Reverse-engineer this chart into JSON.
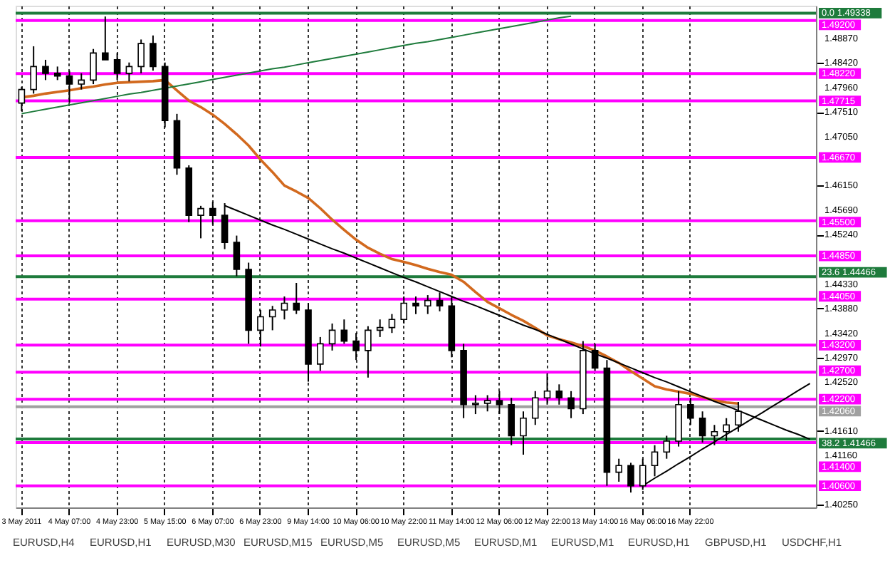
{
  "chart_data": {
    "type": "candlestick",
    "categories": [
      "3 May 2011",
      null,
      null,
      null,
      "4 May 07:00",
      null,
      null,
      null,
      "4 May 23:00",
      null,
      null,
      null,
      "5 May 15:00",
      null,
      null,
      null,
      "6 May 07:00",
      null,
      null,
      null,
      "6 May 23:00",
      null,
      null,
      null,
      "9 May 14:00",
      null,
      null,
      null,
      "10 May 06:00",
      null,
      null,
      null,
      "10 May 22:00",
      null,
      null,
      null,
      "11 May 14:00",
      null,
      null,
      null,
      "12 May 06:00",
      null,
      null,
      null,
      "12 May 22:00",
      null,
      null,
      null,
      "13 May 14:00",
      null,
      null,
      null,
      "16 May 06:00",
      null,
      null,
      null,
      "16 May 22:00",
      null,
      null,
      null,
      null,
      null,
      null,
      null,
      null,
      null,
      null
    ],
    "ohlc": [
      [
        1.47675,
        1.47975,
        1.47525,
        1.47925
      ],
      [
        1.47925,
        1.48725,
        1.4785,
        1.4835
      ],
      [
        1.4835,
        1.48475,
        1.481,
        1.48225
      ],
      [
        1.48225,
        1.4835,
        1.481,
        1.48175
      ],
      [
        1.48175,
        1.48275,
        1.47675,
        1.48025
      ],
      [
        1.48025,
        1.48225,
        1.47925,
        1.481
      ],
      [
        1.481,
        1.48675,
        1.48025,
        1.486
      ],
      [
        1.486,
        1.49275,
        1.48475,
        1.48475
      ],
      [
        1.48475,
        1.486,
        1.481,
        1.48225
      ],
      [
        1.48225,
        1.48425,
        1.48075,
        1.4835
      ],
      [
        1.4835,
        1.4885,
        1.48225,
        1.48775
      ],
      [
        1.48775,
        1.48925,
        1.48275,
        1.4835
      ],
      [
        1.4835,
        1.48425,
        1.47225,
        1.4735
      ],
      [
        1.4735,
        1.47475,
        1.4635,
        1.46475
      ],
      [
        1.46475,
        1.46525,
        1.45475,
        1.456
      ],
      [
        1.456,
        1.45775,
        1.45175,
        1.45725
      ],
      [
        1.45725,
        1.4585,
        1.45425,
        1.456
      ],
      [
        1.456,
        1.45825,
        1.44975,
        1.451
      ],
      [
        1.451,
        1.45225,
        1.44475,
        1.446
      ],
      [
        1.446,
        1.44725,
        1.43225,
        1.43475
      ],
      [
        1.43475,
        1.4385,
        1.43175,
        1.43725
      ],
      [
        1.43725,
        1.43925,
        1.43475,
        1.4385
      ],
      [
        1.4385,
        1.441,
        1.43675,
        1.43975
      ],
      [
        1.43975,
        1.4435,
        1.43775,
        1.4385
      ],
      [
        1.4385,
        1.43975,
        1.42525,
        1.4285
      ],
      [
        1.4285,
        1.4335,
        1.42725,
        1.43225
      ],
      [
        1.43225,
        1.436,
        1.431,
        1.43475
      ],
      [
        1.43475,
        1.43675,
        1.43225,
        1.43275
      ],
      [
        1.43275,
        1.43425,
        1.42925,
        1.431
      ],
      [
        1.431,
        1.4355,
        1.426,
        1.43475
      ],
      [
        1.43475,
        1.43675,
        1.4335,
        1.43525
      ],
      [
        1.43525,
        1.43775,
        1.43425,
        1.43675
      ],
      [
        1.43675,
        1.441,
        1.436,
        1.43975
      ],
      [
        1.43975,
        1.441,
        1.43775,
        1.43925
      ],
      [
        1.43925,
        1.44125,
        1.43775,
        1.44025
      ],
      [
        1.44025,
        1.44175,
        1.43825,
        1.43925
      ],
      [
        1.43925,
        1.441,
        1.42975,
        1.431
      ],
      [
        1.431,
        1.43225,
        1.4185,
        1.421
      ],
      [
        1.421,
        1.42275,
        1.41925,
        1.42125
      ],
      [
        1.42125,
        1.42275,
        1.41975,
        1.42175
      ],
      [
        1.42175,
        1.4235,
        1.41925,
        1.421
      ],
      [
        1.421,
        1.42225,
        1.4135,
        1.41525
      ],
      [
        1.41525,
        1.41975,
        1.41175,
        1.4185
      ],
      [
        1.4185,
        1.4235,
        1.41725,
        1.42225
      ],
      [
        1.42225,
        1.42675,
        1.421,
        1.4235
      ],
      [
        1.4235,
        1.42475,
        1.421,
        1.42225
      ],
      [
        1.42225,
        1.4235,
        1.4185,
        1.42025
      ],
      [
        1.42025,
        1.43275,
        1.41925,
        1.431
      ],
      [
        1.431,
        1.43225,
        1.42725,
        1.42775
      ],
      [
        1.42775,
        1.42925,
        1.406,
        1.4085
      ],
      [
        1.4085,
        1.411,
        1.40675,
        1.40975
      ],
      [
        1.40975,
        1.41025,
        1.40475,
        1.406
      ],
      [
        1.406,
        1.411,
        1.40525,
        1.40975
      ],
      [
        1.40975,
        1.4135,
        1.40775,
        1.41225
      ],
      [
        1.41225,
        1.41525,
        1.411,
        1.41425
      ],
      [
        1.41425,
        1.4235,
        1.41325,
        1.421
      ],
      [
        1.421,
        1.42225,
        1.41725,
        1.4185
      ],
      [
        1.4185,
        1.41975,
        1.414,
        1.41525
      ],
      [
        1.41525,
        1.41725,
        1.4135,
        1.416
      ],
      [
        1.416,
        1.4185,
        1.41425,
        1.41725
      ],
      [
        1.41725,
        1.4215,
        1.416,
        1.41975
      ],
      null,
      null,
      null,
      null,
      null,
      null
    ],
    "ylim": [
      1.402,
      1.49475
    ],
    "yticks": [
      {
        "value": 1.4025,
        "label": "1.40250"
      },
      {
        "value": 1.4116,
        "label": "1.41160"
      },
      {
        "value": 1.4161,
        "label": "1.41610"
      },
      {
        "value": 1.4252,
        "label": "1.42520"
      },
      {
        "value": 1.4297,
        "label": "1.42970"
      },
      {
        "value": 1.4342,
        "label": "1.43420"
      },
      {
        "value": 1.4388,
        "label": "1.43880"
      },
      {
        "value": 1.4433,
        "label": "1.44330"
      },
      {
        "value": 1.4524,
        "label": "1.45240"
      },
      {
        "value": 1.4569,
        "label": "1.45690"
      },
      {
        "value": 1.4615,
        "label": "1.46150"
      },
      {
        "value": 1.4705,
        "label": "1.47050"
      },
      {
        "value": 1.4751,
        "label": "1.47510"
      },
      {
        "value": 1.4796,
        "label": "1.47960"
      },
      {
        "value": 1.4842,
        "label": "1.48420"
      },
      {
        "value": 1.4887,
        "label": "1.48870"
      }
    ],
    "grid": "x",
    "line_style": "solid",
    "series": [
      {
        "type": "line",
        "color": "#d2691e",
        "values": [
          1.4778,
          1.4781,
          1.4785,
          1.4788,
          1.4791,
          1.4795,
          1.4798,
          1.4802,
          1.4805,
          1.4806,
          1.4807,
          1.4808,
          1.481,
          1.4791,
          1.4772,
          1.476,
          1.4746,
          1.4729,
          1.471,
          1.4689,
          1.4663,
          1.464,
          1.4615,
          1.4604,
          1.4592,
          1.4573,
          1.4552,
          1.4533,
          1.4515,
          1.45,
          1.4489,
          1.4479,
          1.4474,
          1.4468,
          1.4461,
          1.4455,
          1.445,
          1.4437,
          1.4418,
          1.44,
          1.4388,
          1.4376,
          1.4365,
          1.4352,
          1.4338,
          1.4331,
          1.4325,
          1.4318,
          1.431,
          1.4299,
          1.4287,
          1.4272,
          1.4258,
          1.4244,
          1.4238,
          1.4234,
          1.423,
          1.4224,
          1.4218,
          1.4214,
          1.4212,
          null,
          null,
          null,
          null,
          null,
          null
        ]
      },
      {
        "type": "line",
        "color": "#1e7b3c",
        "values": [
          1.4748,
          1.4752,
          1.4756,
          1.476,
          1.4764,
          1.4768,
          1.4772,
          1.4776,
          1.478,
          1.4784,
          1.4787,
          1.4791,
          1.4795,
          1.4799,
          1.4803,
          1.4807,
          1.4811,
          1.4815,
          1.4819,
          1.4823,
          1.4827,
          1.4831,
          1.4834,
          1.4838,
          1.4842,
          1.4846,
          1.485,
          1.4854,
          1.4858,
          1.4862,
          1.4866,
          1.487,
          1.4874,
          1.4878,
          1.4881,
          1.4885,
          1.4889,
          1.4893,
          1.4897,
          1.4901,
          1.4905,
          1.4909,
          1.4913,
          1.4917,
          1.4921,
          1.4925,
          1.4928,
          null,
          null,
          null,
          null,
          null,
          null,
          null,
          null,
          null,
          null,
          null,
          null,
          null,
          null,
          null,
          null,
          null,
          null,
          null,
          null
        ]
      },
      {
        "type": "line",
        "color": "#000000",
        "values": [
          null,
          null,
          null,
          null,
          null,
          null,
          null,
          null,
          null,
          null,
          null,
          null,
          null,
          null,
          null,
          null,
          null,
          1.4578,
          1.4569,
          1.456,
          1.4551,
          1.4542,
          1.4534,
          1.4525,
          1.4516,
          1.4507,
          1.4498,
          1.449,
          1.4481,
          1.4472,
          1.4463,
          1.4454,
          1.4445,
          1.4437,
          1.4428,
          1.4419,
          1.441,
          1.4401,
          1.4393,
          1.4384,
          1.4375,
          1.4366,
          1.4357,
          1.4349,
          1.434,
          1.4331,
          1.4322,
          1.4313,
          1.4304,
          1.4296,
          1.4287,
          1.4278,
          1.4269,
          1.426,
          1.4252,
          1.4243,
          1.4234,
          1.4225,
          1.4216,
          1.4208,
          1.4199,
          1.419,
          1.4181,
          1.4172,
          1.4163,
          1.4155,
          1.4146
        ]
      },
      {
        "type": "line",
        "color": "#000000",
        "values": [
          null,
          null,
          null,
          null,
          null,
          null,
          null,
          null,
          null,
          null,
          null,
          null,
          null,
          null,
          null,
          null,
          null,
          null,
          null,
          null,
          null,
          null,
          null,
          null,
          null,
          null,
          null,
          null,
          null,
          null,
          null,
          null,
          null,
          null,
          null,
          null,
          null,
          null,
          null,
          null,
          null,
          null,
          null,
          null,
          null,
          null,
          null,
          null,
          null,
          null,
          null,
          null,
          1.406,
          1.4074,
          1.4087,
          1.4101,
          1.4114,
          1.4128,
          1.4141,
          1.4155,
          1.4168,
          1.4182,
          1.4195,
          1.4209,
          1.4222,
          1.4236,
          1.4249
        ]
      }
    ],
    "ref_lines": [
      {
        "axis": "y",
        "value": 1.49338,
        "label": "0.0 1.49338",
        "color": "#1e7b3c"
      },
      {
        "axis": "y",
        "value": 1.492,
        "label": "1.49200",
        "color": "#ff00ff"
      },
      {
        "axis": "y",
        "value": 1.4822,
        "label": "1.48220",
        "color": "#ff00ff"
      },
      {
        "axis": "y",
        "value": 1.47715,
        "label": "1.47715",
        "color": "#ff00ff"
      },
      {
        "axis": "y",
        "value": 1.4667,
        "label": "1.46670",
        "color": "#ff00ff"
      },
      {
        "axis": "y",
        "value": 1.455,
        "label": "1.45500",
        "color": "#ff00ff"
      },
      {
        "axis": "y",
        "value": 1.4485,
        "label": "1.44850",
        "color": "#ff00ff"
      },
      {
        "axis": "y",
        "value": 1.44466,
        "label": "23.6 1.44466",
        "color": "#1e7b3c"
      },
      {
        "axis": "y",
        "value": 1.4405,
        "label": "1.44050",
        "color": "#ff00ff"
      },
      {
        "axis": "y",
        "value": 1.432,
        "label": "1.43200",
        "color": "#ff00ff"
      },
      {
        "axis": "y",
        "value": 1.427,
        "label": "1.42700",
        "color": "#ff00ff"
      },
      {
        "axis": "y",
        "value": 1.422,
        "label": "1.42200",
        "color": "#ff00ff"
      },
      {
        "axis": "y",
        "value": 1.4206,
        "label": "1.42060",
        "color": "#a0a0a0"
      },
      {
        "axis": "y",
        "value": 1.41466,
        "label": "38.2 1.41466",
        "color": "#1e7b3c"
      },
      {
        "axis": "y",
        "value": 1.414,
        "label": "1.41400",
        "color": "#ff00ff"
      },
      {
        "axis": "y",
        "value": 1.406,
        "label": "1.40600",
        "color": "#ff00ff"
      }
    ],
    "annotations": [
      "EURUSD,H4",
      "EURUSD,H1",
      "EURUSD,M30",
      "EURUSD,M15",
      "EURUSD,M5",
      "EURUSD,M5",
      "EURUSD,M1",
      "EURUSD,M1",
      "EURUSD,H1",
      "GBPUSD,H1",
      "USDCHF,H1"
    ]
  }
}
